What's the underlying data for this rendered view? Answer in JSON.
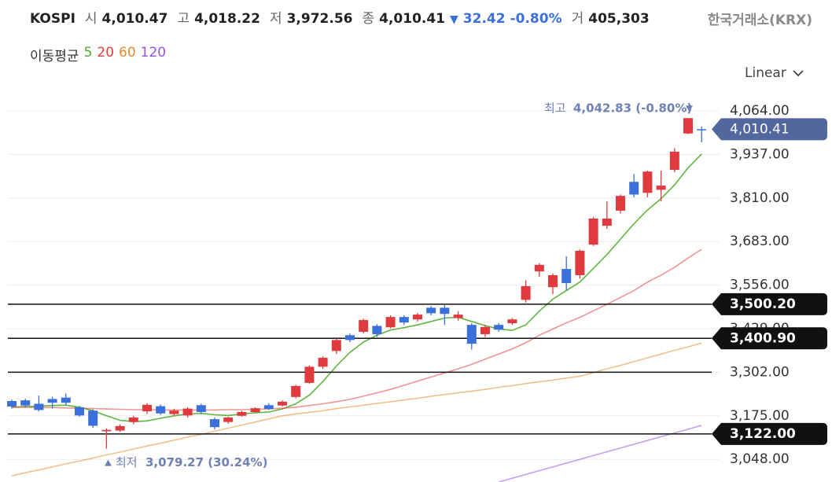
{
  "chart_data": {
    "type": "candlestick",
    "title": "KOSPI",
    "summary": [
      {
        "label": "시",
        "value": "4,010.47"
      },
      {
        "label": "고",
        "value": "4,018.22"
      },
      {
        "label": "저",
        "value": "3,972.56"
      },
      {
        "label": "종",
        "value": "4,010.41"
      }
    ],
    "change_arrow": "▼",
    "change": "32.42",
    "change_pct": "-0.80%",
    "volume_label": "거",
    "volume": "405,303",
    "source": "한국거래소(KRX)",
    "ma_legend_title": "이동평균",
    "scale_mode": "Linear",
    "up_color": "#e03a3e",
    "down_color": "#3b6fd9",
    "open": [
      3218,
      3220,
      3210,
      3224,
      3228,
      3200,
      3190,
      3130,
      3132,
      3157,
      3188,
      3203,
      3180,
      3176,
      3206,
      3165,
      3157,
      3175,
      3186,
      3206,
      3205,
      3230,
      3271,
      3318,
      3364,
      3410,
      3420,
      3437,
      3433,
      3463,
      3456,
      3490,
      3490,
      3460,
      3440,
      3413,
      3440,
      3445,
      3513,
      3596,
      3550,
      3603,
      3585,
      3674,
      3729,
      3773,
      3857,
      3825,
      3834,
      3892,
      3998,
      4010.47
    ],
    "high": [
      3222,
      3225,
      3234,
      3230,
      3240,
      3204,
      3194,
      3138,
      3150,
      3175,
      3212,
      3208,
      3195,
      3200,
      3210,
      3170,
      3172,
      3190,
      3200,
      3212,
      3220,
      3265,
      3322,
      3348,
      3400,
      3415,
      3458,
      3442,
      3468,
      3468,
      3475,
      3495,
      3500,
      3480,
      3445,
      3440,
      3446,
      3460,
      3570,
      3620,
      3590,
      3640,
      3660,
      3755,
      3800,
      3820,
      3880,
      3890,
      3890,
      3955,
      4042.83,
      4018.22
    ],
    "low": [
      3196,
      3200,
      3188,
      3196,
      3205,
      3172,
      3140,
      3079.27,
      3128,
      3150,
      3180,
      3178,
      3175,
      3170,
      3180,
      3135,
      3152,
      3172,
      3183,
      3192,
      3202,
      3226,
      3268,
      3312,
      3355,
      3390,
      3415,
      3405,
      3430,
      3440,
      3450,
      3468,
      3440,
      3452,
      3368,
      3405,
      3420,
      3440,
      3505,
      3580,
      3530,
      3540,
      3575,
      3670,
      3720,
      3765,
      3812,
      3812,
      3800,
      3885,
      3996,
      3972.56
    ],
    "close": [
      3202,
      3205,
      3192,
      3213,
      3213,
      3176,
      3146,
      3134,
      3145,
      3170,
      3207,
      3182,
      3190,
      3196,
      3186,
      3142,
      3170,
      3186,
      3197,
      3195,
      3216,
      3262,
      3318,
      3344,
      3396,
      3396,
      3454,
      3413,
      3463,
      3447,
      3470,
      3474,
      3472,
      3470,
      3385,
      3434,
      3426,
      3456,
      3553,
      3615,
      3585,
      3562,
      3656,
      3750,
      3750,
      3816,
      3820,
      3887,
      3846,
      3945,
      4042.83,
      4010.41
    ],
    "series": [
      {
        "name": "5",
        "color": "#4cae2c",
        "values": [
          3200,
          3202,
          3203,
          3205,
          3206,
          3200,
          3190,
          3175,
          3162,
          3158,
          3160,
          3168,
          3175,
          3180,
          3182,
          3178,
          3176,
          3180,
          3184,
          3186,
          3195,
          3210,
          3235,
          3275,
          3320,
          3360,
          3390,
          3410,
          3425,
          3432,
          3440,
          3450,
          3460,
          3462,
          3450,
          3438,
          3428,
          3424,
          3440,
          3480,
          3515,
          3540,
          3565,
          3605,
          3645,
          3690,
          3735,
          3775,
          3808,
          3848,
          3898,
          3938
        ]
      },
      {
        "name": "20",
        "color": "#e2403c",
        "values": [
          3200,
          3200,
          3199,
          3199,
          3198,
          3197,
          3196,
          3195,
          3194,
          3193,
          3193,
          3192,
          3192,
          3192,
          3192,
          3192,
          3193,
          3193,
          3194,
          3195,
          3197,
          3200,
          3205,
          3210,
          3216,
          3223,
          3232,
          3242,
          3252,
          3264,
          3276,
          3288,
          3300,
          3312,
          3325,
          3340,
          3355,
          3370,
          3388,
          3410,
          3428,
          3446,
          3462,
          3481,
          3500,
          3520,
          3540,
          3565,
          3585,
          3608,
          3635,
          3660
        ]
      },
      {
        "name": "60",
        "color": "#e88a2c",
        "values": [
          3000,
          3009,
          3017,
          3026,
          3035,
          3043,
          3052,
          3061,
          3069,
          3078,
          3087,
          3095,
          3104,
          3113,
          3121,
          3130,
          3139,
          3148,
          3157,
          3166,
          3175,
          3180,
          3185,
          3190,
          3196,
          3201,
          3206,
          3211,
          3216,
          3221,
          3226,
          3232,
          3237,
          3242,
          3247,
          3252,
          3258,
          3263,
          3269,
          3274,
          3279,
          3285,
          3290,
          3301,
          3312,
          3322,
          3333,
          3344,
          3355,
          3366,
          3376,
          3387
        ]
      },
      {
        "name": "120",
        "color": "#9b4fe0",
        "values": [
          null,
          null,
          null,
          null,
          null,
          null,
          null,
          null,
          null,
          null,
          null,
          null,
          null,
          null,
          null,
          null,
          null,
          null,
          null,
          null,
          null,
          null,
          null,
          null,
          null,
          null,
          null,
          null,
          null,
          null,
          null,
          null,
          null,
          null,
          null,
          null,
          2982,
          2993,
          3004,
          3015,
          3026,
          3037,
          3048,
          3059,
          3070,
          3081,
          3092,
          3103,
          3114,
          3125,
          3136,
          3147
        ]
      }
    ],
    "ylim": [
      2982,
      4135
    ],
    "yticks": [
      {
        "value": 4064,
        "label": "4,064.00"
      },
      {
        "value": 3937,
        "label": "3,937.00"
      },
      {
        "value": 3810,
        "label": "3,810.00"
      },
      {
        "value": 3683,
        "label": "3,683.00"
      },
      {
        "value": 3556,
        "label": "3,556.00"
      },
      {
        "value": 3429,
        "label": "3,429.00"
      },
      {
        "value": 3302,
        "label": "3,302.00"
      },
      {
        "value": 3175,
        "label": "3,175.00"
      },
      {
        "value": 3048,
        "label": "3,048.00"
      }
    ],
    "grid": true,
    "levels": [
      3500.2,
      3400.9,
      3302,
      3122
    ],
    "level_labels": [
      "3,500.20",
      "3,400.90",
      null,
      "3,122.00"
    ],
    "current_price": {
      "value": 4010.41,
      "label": "4,010.41"
    },
    "current_color": "#53679f",
    "high_label": "최고",
    "high_text": "4,042.83 (-0.80%)",
    "low_label": "최저",
    "low_text": "3,079.27 (30.24%)",
    "annotation_color": "#6f80b4"
  }
}
